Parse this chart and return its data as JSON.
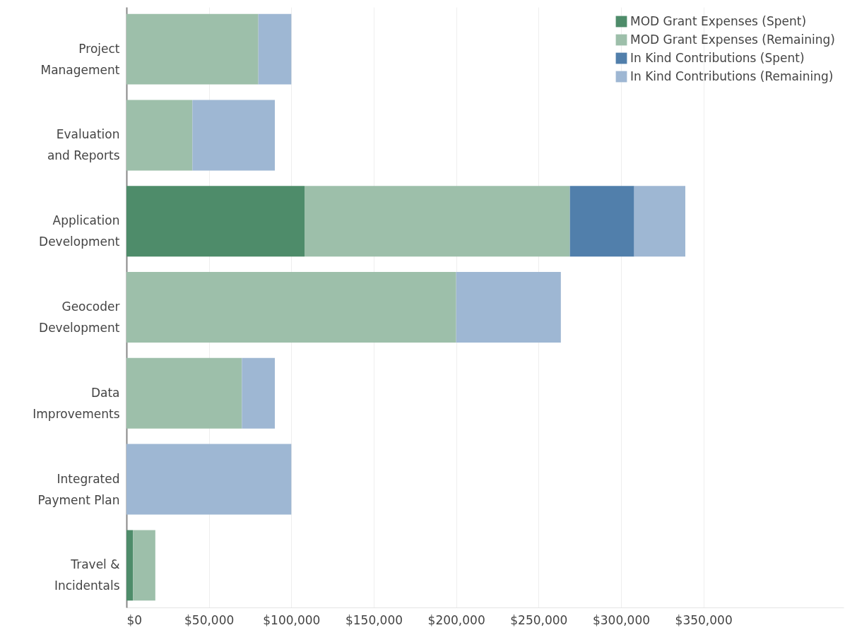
{
  "chart_data": {
    "type": "bar",
    "orientation": "horizontal",
    "stacked": true,
    "categories": [
      "Project Management",
      "Evaluation and Reports",
      "Application Development",
      "Geocoder Development",
      "Data Improvements",
      "Integrated Payment Plan",
      "Travel & Incidentals"
    ],
    "series": [
      {
        "name": "MOD Grant Expenses (Spent)",
        "color": "#4e8c6a",
        "values": [
          0,
          0,
          108000,
          0,
          0,
          0,
          4000
        ]
      },
      {
        "name": "MOD Grant Expenses (Remaining)",
        "color": "#9dbfaa",
        "values": [
          80000,
          40000,
          161000,
          200000,
          70000,
          0,
          13500
        ]
      },
      {
        "name": "In Kind Contributions (Spent)",
        "color": "#517fab",
        "values": [
          0,
          0,
          39000,
          0,
          0,
          0,
          0
        ]
      },
      {
        "name": "In Kind Contributions (Remaining)",
        "color": "#9eb7d3",
        "values": [
          20000,
          50000,
          31000,
          63500,
          20000,
          100000,
          0
        ]
      }
    ],
    "xlim": [
      0,
      435000
    ],
    "xticks": [
      {
        "value": 0,
        "label": "$0"
      },
      {
        "value": 50000,
        "label": "$50,000"
      },
      {
        "value": 100000,
        "label": "$100,000"
      },
      {
        "value": 150000,
        "label": "$150,000"
      },
      {
        "value": 200000,
        "label": "$200,000"
      },
      {
        "value": 250000,
        "label": "$250,000"
      },
      {
        "value": 300000,
        "label": "$300,000"
      },
      {
        "value": 350000,
        "label": "$350,000"
      }
    ],
    "grid": true,
    "legend": "top right"
  }
}
